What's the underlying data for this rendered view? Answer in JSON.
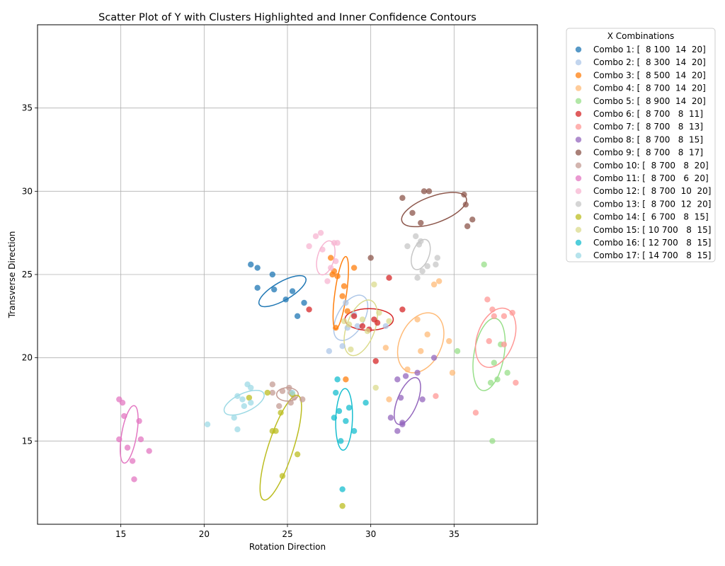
{
  "chart_data": {
    "type": "scatter",
    "title": "Scatter Plot of Y with Clusters Highlighted and Inner Confidence Contours",
    "xlabel": "Rotation Direction",
    "ylabel": "Transverse Direction",
    "xlim": [
      10,
      40
    ],
    "ylim": [
      10,
      40
    ],
    "xticks": [
      15,
      20,
      25,
      30,
      35
    ],
    "yticks": [
      15,
      20,
      25,
      30,
      35
    ],
    "grid": true,
    "legend": {
      "title": "X Combinations",
      "placement": "outside-right"
    },
    "series": [
      {
        "name": "Combo 1: [  8 100  14  20]",
        "color": "#1f77b4",
        "points": [
          [
            22.8,
            25.6
          ],
          [
            23.2,
            25.4
          ],
          [
            23.2,
            24.2
          ],
          [
            24.1,
            25.0
          ],
          [
            24.2,
            24.1
          ],
          [
            24.9,
            23.5
          ],
          [
            25.3,
            24.0
          ],
          [
            25.6,
            22.5
          ],
          [
            26.0,
            23.3
          ]
        ],
        "ellipse": {
          "cx": 24.7,
          "cy": 24.0,
          "rx": 1.6,
          "ry": 0.55,
          "angle": -30
        }
      },
      {
        "name": "Combo 2: [  8 300  14  20]",
        "color": "#aec7e8",
        "points": [
          [
            27.5,
            20.4
          ],
          [
            28.3,
            20.7
          ],
          [
            28.5,
            23.3
          ],
          [
            28.6,
            21.8
          ],
          [
            29.0,
            22.6
          ],
          [
            29.2,
            21.9
          ],
          [
            30.9,
            21.9
          ]
        ],
        "ellipse": {
          "cx": 28.8,
          "cy": 22.4,
          "rx": 1.5,
          "ry": 0.8,
          "angle": -60
        }
      },
      {
        "name": "Combo 3: [  8 500  14  20]",
        "color": "#ff7f0e",
        "points": [
          [
            27.6,
            26.0
          ],
          [
            27.7,
            25.0
          ],
          [
            27.8,
            25.2
          ],
          [
            28.0,
            24.9
          ],
          [
            28.3,
            23.7
          ],
          [
            28.4,
            24.3
          ],
          [
            28.5,
            18.7
          ],
          [
            28.6,
            22.8
          ],
          [
            29.0,
            25.4
          ],
          [
            27.9,
            21.8
          ]
        ],
        "ellipse": {
          "cx": 28.2,
          "cy": 23.9,
          "rx": 2.2,
          "ry": 0.35,
          "angle": -82
        }
      },
      {
        "name": "Combo 4: [  8 700  14  20]",
        "color": "#ffbb78",
        "points": [
          [
            32.2,
            19.3
          ],
          [
            32.8,
            22.3
          ],
          [
            33.0,
            20.4
          ],
          [
            33.4,
            21.4
          ],
          [
            33.8,
            24.4
          ],
          [
            34.1,
            24.6
          ],
          [
            34.7,
            21.0
          ],
          [
            34.9,
            19.1
          ],
          [
            30.9,
            20.6
          ],
          [
            31.1,
            17.5
          ]
        ],
        "ellipse": {
          "cx": 33.0,
          "cy": 20.9,
          "rx": 1.9,
          "ry": 1.25,
          "angle": -65
        }
      },
      {
        "name": "Combo 5: [  8 900  14  20]",
        "color": "#98df8a",
        "points": [
          [
            35.2,
            20.4
          ],
          [
            36.8,
            25.6
          ],
          [
            37.2,
            18.5
          ],
          [
            37.4,
            19.7
          ],
          [
            37.6,
            18.7
          ],
          [
            37.8,
            20.8
          ],
          [
            38.2,
            19.1
          ],
          [
            37.3,
            15.0
          ]
        ],
        "ellipse": {
          "cx": 37.1,
          "cy": 20.2,
          "rx": 2.2,
          "ry": 0.9,
          "angle": -80
        }
      },
      {
        "name": "Combo 6: [  8 700   8  11]",
        "color": "#d62728",
        "points": [
          [
            26.3,
            22.9
          ],
          [
            29.0,
            22.5
          ],
          [
            29.5,
            21.9
          ],
          [
            29.9,
            21.7
          ],
          [
            30.2,
            22.3
          ],
          [
            30.4,
            22.1
          ],
          [
            31.1,
            24.8
          ],
          [
            31.9,
            22.9
          ],
          [
            30.3,
            19.8
          ]
        ],
        "ellipse": {
          "cx": 29.9,
          "cy": 22.3,
          "rx": 1.45,
          "ry": 0.65,
          "angle": 0
        }
      },
      {
        "name": "Combo 7: [  8 700   8  13]",
        "color": "#ff9896",
        "points": [
          [
            36.3,
            16.7
          ],
          [
            37.0,
            23.5
          ],
          [
            37.1,
            21.0
          ],
          [
            37.3,
            22.9
          ],
          [
            37.4,
            22.5
          ],
          [
            38.0,
            20.8
          ],
          [
            38.0,
            22.5
          ],
          [
            38.5,
            22.7
          ],
          [
            38.7,
            18.5
          ],
          [
            33.9,
            17.7
          ]
        ],
        "ellipse": {
          "cx": 37.5,
          "cy": 21.2,
          "rx": 1.85,
          "ry": 1.1,
          "angle": -70
        }
      },
      {
        "name": "Combo 8: [  8 700   8  15]",
        "color": "#9467bd",
        "points": [
          [
            31.2,
            16.4
          ],
          [
            31.6,
            18.7
          ],
          [
            31.6,
            15.6
          ],
          [
            31.8,
            17.6
          ],
          [
            31.9,
            16.1
          ],
          [
            32.1,
            18.9
          ],
          [
            32.8,
            19.1
          ],
          [
            33.1,
            17.5
          ],
          [
            33.8,
            20.0
          ],
          [
            31.9,
            16.0
          ]
        ],
        "ellipse": {
          "cx": 32.2,
          "cy": 17.4,
          "rx": 1.5,
          "ry": 0.6,
          "angle": -68
        }
      },
      {
        "name": "Combo 9: [  8 700   8  17]",
        "color": "#8c564b",
        "points": [
          [
            31.9,
            29.6
          ],
          [
            32.5,
            28.7
          ],
          [
            33.0,
            28.1
          ],
          [
            33.2,
            30.0
          ],
          [
            33.5,
            30.0
          ],
          [
            35.6,
            29.8
          ],
          [
            35.7,
            29.2
          ],
          [
            35.8,
            27.9
          ],
          [
            36.1,
            28.3
          ],
          [
            30.0,
            26.0
          ]
        ],
        "ellipse": {
          "cx": 33.8,
          "cy": 28.9,
          "rx": 2.05,
          "ry": 0.8,
          "angle": -20
        }
      },
      {
        "name": "Combo 10: [  8 700   8  20]",
        "color": "#c49c94",
        "points": [
          [
            24.1,
            18.4
          ],
          [
            24.1,
            17.9
          ],
          [
            24.5,
            17.1
          ],
          [
            24.7,
            18.0
          ],
          [
            25.1,
            18.2
          ],
          [
            25.2,
            17.3
          ],
          [
            25.2,
            17.9
          ],
          [
            25.4,
            17.6
          ],
          [
            25.9,
            17.5
          ]
        ],
        "ellipse": {
          "cx": 25.0,
          "cy": 17.8,
          "rx": 0.65,
          "ry": 0.4,
          "angle": 0
        }
      },
      {
        "name": "Combo 11: [  8 700   6  20]",
        "color": "#e377c2",
        "points": [
          [
            14.9,
            17.5
          ],
          [
            15.1,
            17.3
          ],
          [
            14.9,
            15.1
          ],
          [
            15.2,
            16.5
          ],
          [
            15.4,
            14.6
          ],
          [
            15.7,
            13.8
          ],
          [
            15.8,
            12.7
          ],
          [
            16.1,
            16.2
          ],
          [
            16.2,
            15.1
          ],
          [
            16.7,
            14.4
          ]
        ],
        "ellipse": {
          "cx": 15.5,
          "cy": 15.4,
          "rx": 1.75,
          "ry": 0.45,
          "angle": -80
        }
      },
      {
        "name": "Combo 12: [  8 700  10  20]",
        "color": "#f7b6d2",
        "points": [
          [
            26.7,
            27.3
          ],
          [
            26.3,
            26.7
          ],
          [
            27.0,
            27.5
          ],
          [
            27.1,
            26.5
          ],
          [
            27.4,
            24.6
          ],
          [
            27.6,
            25.4
          ],
          [
            27.8,
            26.9
          ],
          [
            28.0,
            26.9
          ],
          [
            27.9,
            25.8
          ]
        ],
        "ellipse": {
          "cx": 27.3,
          "cy": 26.0,
          "rx": 1.05,
          "ry": 0.5,
          "angle": -75
        }
      },
      {
        "name": "Combo 13: [  8 700  12  20]",
        "color": "#c7c7c7",
        "points": [
          [
            32.2,
            26.7
          ],
          [
            32.7,
            27.3
          ],
          [
            32.8,
            24.8
          ],
          [
            33.0,
            27.0
          ],
          [
            33.1,
            25.2
          ],
          [
            33.4,
            25.5
          ],
          [
            33.9,
            25.6
          ],
          [
            34.0,
            26.0
          ],
          [
            32.9,
            26.8
          ]
        ],
        "ellipse": {
          "cx": 33.0,
          "cy": 26.2,
          "rx": 0.95,
          "ry": 0.5,
          "angle": -70
        }
      },
      {
        "name": "Combo 14: [  6 700   8  15]",
        "color": "#bcbd22",
        "points": [
          [
            22.7,
            17.6
          ],
          [
            23.8,
            17.9
          ],
          [
            24.1,
            15.6
          ],
          [
            24.3,
            15.6
          ],
          [
            24.6,
            16.7
          ],
          [
            24.7,
            12.9
          ],
          [
            25.6,
            14.2
          ],
          [
            28.3,
            11.1
          ],
          [
            25.3,
            17.8
          ]
        ],
        "ellipse": {
          "cx": 24.6,
          "cy": 14.6,
          "rx": 3.3,
          "ry": 0.75,
          "angle": -72
        }
      },
      {
        "name": "Combo 15: [ 10 700   8  15]",
        "color": "#dbdb8d",
        "points": [
          [
            28.4,
            22.2
          ],
          [
            28.8,
            20.5
          ],
          [
            29.5,
            22.3
          ],
          [
            29.8,
            21.6
          ],
          [
            30.2,
            24.4
          ],
          [
            30.3,
            18.2
          ],
          [
            30.5,
            22.7
          ],
          [
            31.1,
            22.2
          ],
          [
            28.7,
            22.0
          ]
        ],
        "ellipse": {
          "cx": 29.4,
          "cy": 21.8,
          "rx": 1.75,
          "ry": 0.85,
          "angle": -70
        }
      },
      {
        "name": "Combo 16: [ 12 700   8  15]",
        "color": "#17becf",
        "points": [
          [
            27.8,
            16.4
          ],
          [
            27.9,
            17.9
          ],
          [
            28.0,
            18.7
          ],
          [
            28.1,
            16.8
          ],
          [
            28.2,
            15.0
          ],
          [
            28.3,
            12.1
          ],
          [
            28.5,
            16.2
          ],
          [
            28.7,
            17.0
          ],
          [
            29.0,
            15.6
          ],
          [
            29.7,
            17.3
          ]
        ],
        "ellipse": {
          "cx": 28.4,
          "cy": 16.3,
          "rx": 1.85,
          "ry": 0.5,
          "angle": -88
        }
      },
      {
        "name": "Combo 17: [ 14 700   8  15]",
        "color": "#9edae5",
        "points": [
          [
            20.2,
            16.0
          ],
          [
            21.8,
            16.4
          ],
          [
            22.0,
            15.7
          ],
          [
            22.0,
            17.7
          ],
          [
            22.3,
            17.5
          ],
          [
            22.4,
            17.1
          ],
          [
            22.6,
            18.4
          ],
          [
            22.8,
            17.3
          ],
          [
            22.8,
            18.2
          ],
          [
            25.3,
            17.9
          ]
        ],
        "ellipse": {
          "cx": 22.4,
          "cy": 17.3,
          "rx": 1.3,
          "ry": 0.55,
          "angle": -25
        }
      }
    ]
  }
}
